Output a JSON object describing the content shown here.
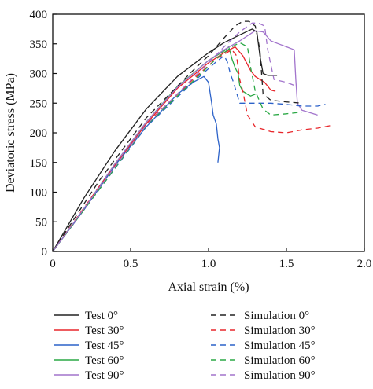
{
  "chart_data": {
    "type": "line",
    "xlabel": "Axial strain (%)",
    "ylabel": "Deviatoric stress (MPa)",
    "xlim": [
      0,
      2.0
    ],
    "ylim": [
      0,
      400
    ],
    "x_ticks": [
      "0",
      "0.5",
      "1.0",
      "1.5",
      "2.0"
    ],
    "y_ticks": [
      "0",
      "50",
      "100",
      "150",
      "200",
      "250",
      "300",
      "350",
      "400"
    ],
    "grid": false,
    "legend_position": "bottom",
    "series": [
      {
        "name": "Test 0°",
        "style": "solid",
        "color": "#222222",
        "x": [
          0,
          0.2,
          0.4,
          0.6,
          0.8,
          1.0,
          1.1,
          1.2,
          1.28,
          1.31,
          1.33,
          1.35,
          1.38,
          1.42,
          1.44
        ],
        "y": [
          0,
          90,
          170,
          240,
          295,
          335,
          352,
          365,
          375,
          370,
          330,
          300,
          297,
          297,
          297
        ]
      },
      {
        "name": "Test 30°",
        "style": "solid",
        "color": "#e8262b",
        "x": [
          0,
          0.2,
          0.4,
          0.6,
          0.8,
          1.0,
          1.1,
          1.17,
          1.22,
          1.27,
          1.3,
          1.33,
          1.36,
          1.4,
          1.43
        ],
        "y": [
          0,
          70,
          145,
          215,
          275,
          318,
          335,
          345,
          330,
          305,
          295,
          290,
          285,
          272,
          270
        ]
      },
      {
        "name": "Test 45°",
        "style": "solid",
        "color": "#2c62c9",
        "x": [
          0,
          0.2,
          0.4,
          0.6,
          0.8,
          0.9,
          0.97,
          1.0,
          1.02,
          1.03,
          1.05,
          1.06,
          1.07,
          1.06
        ],
        "y": [
          0,
          70,
          145,
          210,
          265,
          285,
          295,
          285,
          250,
          230,
          215,
          190,
          175,
          150
        ]
      },
      {
        "name": "Test 60°",
        "style": "solid",
        "color": "#2aa845",
        "x": [
          0,
          0.2,
          0.4,
          0.6,
          0.8,
          1.0,
          1.1,
          1.13,
          1.15,
          1.17,
          1.19,
          1.2,
          1.22,
          1.25,
          1.27,
          1.3
        ],
        "y": [
          0,
          72,
          148,
          218,
          278,
          322,
          338,
          345,
          325,
          310,
          300,
          280,
          270,
          265,
          262,
          265
        ]
      },
      {
        "name": "Test 90°",
        "style": "solid",
        "color": "#a274cc",
        "x": [
          0,
          0.2,
          0.4,
          0.6,
          0.8,
          1.0,
          1.1,
          1.2,
          1.3,
          1.35,
          1.4,
          1.45,
          1.5,
          1.55,
          1.56,
          1.57,
          1.6,
          1.7
        ],
        "y": [
          0,
          72,
          148,
          218,
          277,
          322,
          340,
          355,
          372,
          370,
          355,
          350,
          345,
          340,
          290,
          250,
          238,
          230
        ]
      },
      {
        "name": "Simulation 0°",
        "style": "dashed",
        "color": "#222222",
        "x": [
          0,
          0.3,
          0.6,
          0.9,
          1.0,
          1.1,
          1.17,
          1.22,
          1.26,
          1.3,
          1.33,
          1.35,
          1.4,
          1.5,
          1.6
        ],
        "y": [
          0,
          120,
          225,
          305,
          330,
          360,
          380,
          388,
          388,
          380,
          340,
          265,
          255,
          252,
          250
        ]
      },
      {
        "name": "Simulation 30°",
        "style": "dashed",
        "color": "#e8262b",
        "x": [
          0,
          0.3,
          0.6,
          0.9,
          1.05,
          1.15,
          1.18,
          1.2,
          1.22,
          1.25,
          1.3,
          1.4,
          1.5,
          1.6,
          1.7,
          1.78
        ],
        "y": [
          0,
          110,
          215,
          290,
          325,
          340,
          330,
          290,
          270,
          230,
          210,
          202,
          200,
          205,
          208,
          212
        ]
      },
      {
        "name": "Simulation 45°",
        "style": "dashed",
        "color": "#2c62c9",
        "x": [
          0,
          0.3,
          0.6,
          0.9,
          1.05,
          1.1,
          1.12,
          1.14,
          1.16,
          1.2,
          1.3,
          1.4,
          1.5,
          1.6,
          1.7,
          1.75
        ],
        "y": [
          0,
          105,
          210,
          285,
          320,
          330,
          320,
          300,
          285,
          250,
          250,
          250,
          248,
          245,
          245,
          248
        ]
      },
      {
        "name": "Simulation 60°",
        "style": "dashed",
        "color": "#2aa845",
        "x": [
          0,
          0.3,
          0.6,
          0.9,
          1.05,
          1.15,
          1.2,
          1.25,
          1.27,
          1.3,
          1.35,
          1.4,
          1.5,
          1.6
        ],
        "y": [
          0,
          105,
          212,
          287,
          325,
          345,
          352,
          345,
          310,
          270,
          240,
          230,
          232,
          235
        ]
      },
      {
        "name": "Simulation 90°",
        "style": "dashed",
        "color": "#a274cc",
        "x": [
          0,
          0.3,
          0.6,
          0.9,
          1.0,
          1.1,
          1.2,
          1.28,
          1.32,
          1.36,
          1.38,
          1.42,
          1.5,
          1.55
        ],
        "y": [
          0,
          108,
          213,
          292,
          318,
          345,
          370,
          385,
          385,
          380,
          340,
          290,
          285,
          280
        ]
      }
    ]
  }
}
